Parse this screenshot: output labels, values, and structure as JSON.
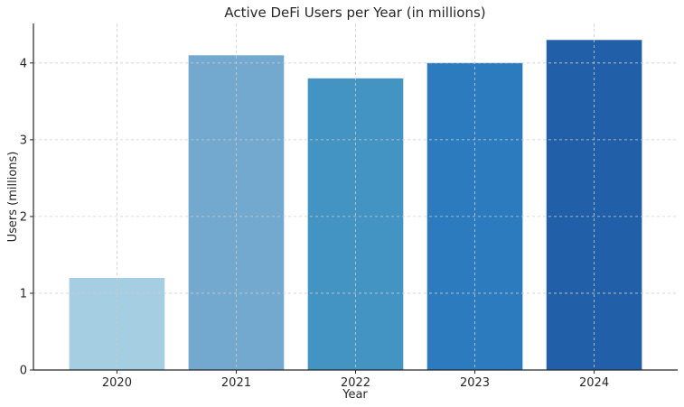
{
  "chart_data": {
    "type": "bar",
    "title": "Active DeFi Users per Year (in millions)",
    "xlabel": "Year",
    "ylabel": "Users (millions)",
    "categories": [
      "2020",
      "2021",
      "2022",
      "2023",
      "2024"
    ],
    "values": [
      1.2,
      4.1,
      3.8,
      4.0,
      4.3
    ],
    "colors": [
      "#a6cee3",
      "#74a9cf",
      "#4393c3",
      "#2c7bbf",
      "#2160a8"
    ],
    "ylim": [
      0,
      4.515
    ],
    "yticks": [
      0,
      1,
      2,
      3,
      4
    ],
    "grid": true,
    "legend": "none"
  }
}
